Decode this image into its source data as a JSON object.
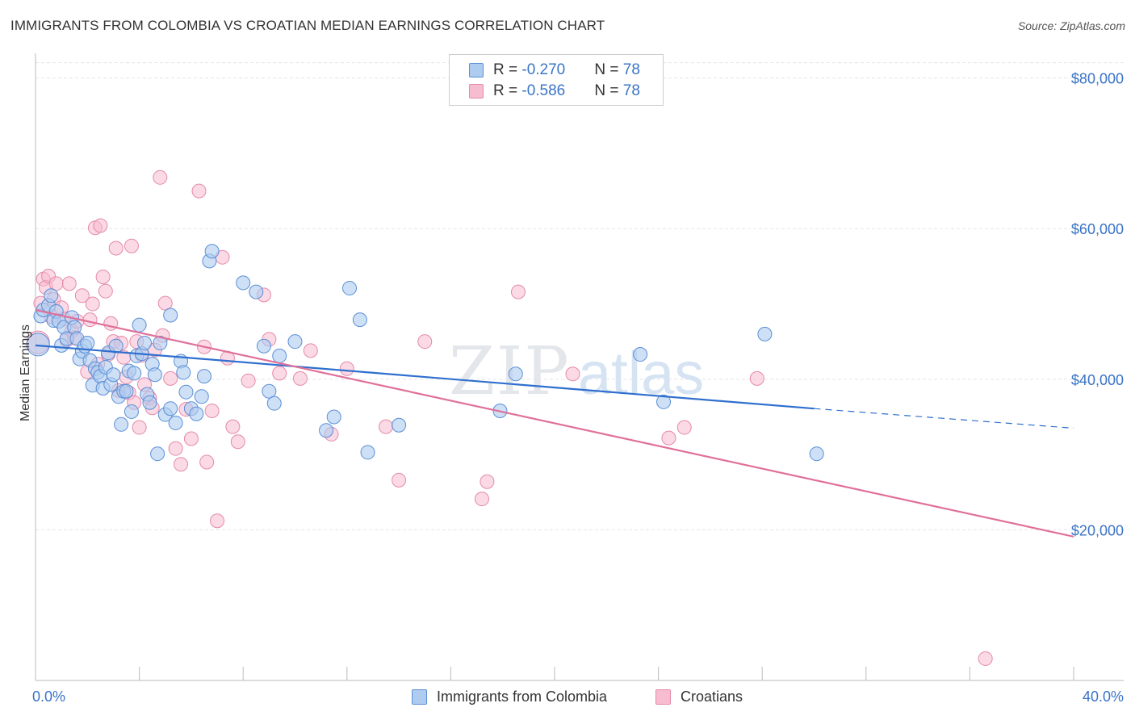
{
  "header": {
    "title": "IMMIGRANTS FROM COLOMBIA VS CROATIAN MEDIAN EARNINGS CORRELATION CHART",
    "source": "Source: ZipAtlas.com"
  },
  "legend": {
    "rows": [
      {
        "r_label": "R = ",
        "r_value": "-0.270",
        "n_label": "N = ",
        "n_value": "78"
      },
      {
        "r_label": "R = ",
        "r_value": "-0.586",
        "n_label": "N = ",
        "n_value": "78"
      }
    ]
  },
  "bottom_legend": [
    "Immigrants from Colombia",
    "Croatians"
  ],
  "colors": {
    "blue_fill": "#aecbf0",
    "blue_stroke": "#5b8fd6",
    "blue_line": "#2f6fce",
    "pink_fill": "#f7bcd0",
    "pink_stroke": "#e48aab",
    "pink_line": "#e0709a",
    "tick_text": "#3a74c7",
    "grid": "#e5e5e5"
  },
  "chart_data": {
    "type": "scatter",
    "title": "IMMIGRANTS FROM COLOMBIA VS CROATIAN MEDIAN EARNINGS CORRELATION CHART",
    "xlabel": "",
    "ylabel": "Median Earnings",
    "xlim": [
      0,
      0.4
    ],
    "ylim": [
      0,
      82000
    ],
    "y_ticks": [
      {
        "value": 20000,
        "label": "$20,000"
      },
      {
        "value": 40000,
        "label": "$40,000"
      },
      {
        "value": 60000,
        "label": "$60,000"
      },
      {
        "value": 80000,
        "label": "$80,000"
      }
    ],
    "x_tick_labels": [
      {
        "value": 0,
        "label": "0.0%"
      },
      {
        "value": 0.4,
        "label": "40.0%"
      }
    ],
    "grid": true,
    "legend_position": "top-center",
    "watermark": "ZIPatlas",
    "series": [
      {
        "name": "Immigrants from Colombia",
        "color": "#aecbf0",
        "trend": {
          "x": [
            0,
            0.3
          ],
          "y": [
            44500,
            36100
          ],
          "dashed_to": [
            0.4,
            33500
          ]
        },
        "points": [
          [
            0.001,
            44600
          ],
          [
            0.002,
            48400
          ],
          [
            0.003,
            49200
          ],
          [
            0.005,
            49800
          ],
          [
            0.006,
            51100
          ],
          [
            0.007,
            47800
          ],
          [
            0.008,
            49000
          ],
          [
            0.009,
            47700
          ],
          [
            0.01,
            44500
          ],
          [
            0.011,
            46900
          ],
          [
            0.012,
            45400
          ],
          [
            0.014,
            48200
          ],
          [
            0.015,
            46900
          ],
          [
            0.016,
            45400
          ],
          [
            0.017,
            42700
          ],
          [
            0.018,
            43700
          ],
          [
            0.019,
            44400
          ],
          [
            0.02,
            44800
          ],
          [
            0.021,
            42500
          ],
          [
            0.022,
            39200
          ],
          [
            0.023,
            41400
          ],
          [
            0.024,
            40900
          ],
          [
            0.025,
            40400
          ],
          [
            0.026,
            38800
          ],
          [
            0.027,
            41600
          ],
          [
            0.028,
            43500
          ],
          [
            0.029,
            39300
          ],
          [
            0.03,
            40600
          ],
          [
            0.031,
            44400
          ],
          [
            0.032,
            37700
          ],
          [
            0.033,
            34000
          ],
          [
            0.034,
            38400
          ],
          [
            0.035,
            38400
          ],
          [
            0.036,
            41100
          ],
          [
            0.037,
            35700
          ],
          [
            0.038,
            40800
          ],
          [
            0.039,
            43100
          ],
          [
            0.04,
            47200
          ],
          [
            0.041,
            43400
          ],
          [
            0.042,
            44800
          ],
          [
            0.043,
            38000
          ],
          [
            0.044,
            36900
          ],
          [
            0.045,
            42000
          ],
          [
            0.046,
            40600
          ],
          [
            0.047,
            30100
          ],
          [
            0.048,
            44800
          ],
          [
            0.05,
            35300
          ],
          [
            0.052,
            36100
          ],
          [
            0.054,
            34200
          ],
          [
            0.056,
            42400
          ],
          [
            0.057,
            40900
          ],
          [
            0.058,
            38300
          ],
          [
            0.06,
            36100
          ],
          [
            0.062,
            35400
          ],
          [
            0.064,
            37700
          ],
          [
            0.065,
            40400
          ],
          [
            0.067,
            55700
          ],
          [
            0.068,
            57000
          ],
          [
            0.08,
            52800
          ],
          [
            0.085,
            51600
          ],
          [
            0.088,
            44400
          ],
          [
            0.09,
            38400
          ],
          [
            0.092,
            36800
          ],
          [
            0.094,
            43100
          ],
          [
            0.1,
            45000
          ],
          [
            0.112,
            33200
          ],
          [
            0.115,
            35000
          ],
          [
            0.121,
            52100
          ],
          [
            0.125,
            47900
          ],
          [
            0.128,
            30300
          ],
          [
            0.14,
            33900
          ],
          [
            0.179,
            35800
          ],
          [
            0.185,
            40700
          ],
          [
            0.233,
            43300
          ],
          [
            0.242,
            37000
          ],
          [
            0.281,
            46000
          ],
          [
            0.301,
            30100
          ],
          [
            0.052,
            48500
          ]
        ]
      },
      {
        "name": "Croatians",
        "color": "#f7bcd0",
        "trend": {
          "x": [
            0,
            0.4
          ],
          "y": [
            49200,
            19100
          ]
        },
        "points": [
          [
            0.001,
            44900
          ],
          [
            0.002,
            50100
          ],
          [
            0.003,
            53300
          ],
          [
            0.004,
            52200
          ],
          [
            0.005,
            53700
          ],
          [
            0.006,
            48300
          ],
          [
            0.007,
            50600
          ],
          [
            0.008,
            52700
          ],
          [
            0.01,
            49500
          ],
          [
            0.011,
            48000
          ],
          [
            0.012,
            45200
          ],
          [
            0.013,
            52700
          ],
          [
            0.014,
            46400
          ],
          [
            0.015,
            45500
          ],
          [
            0.016,
            47700
          ],
          [
            0.018,
            51100
          ],
          [
            0.02,
            41000
          ],
          [
            0.021,
            47900
          ],
          [
            0.022,
            50000
          ],
          [
            0.023,
            60100
          ],
          [
            0.024,
            42000
          ],
          [
            0.025,
            60400
          ],
          [
            0.026,
            53600
          ],
          [
            0.027,
            51700
          ],
          [
            0.028,
            43300
          ],
          [
            0.029,
            47400
          ],
          [
            0.03,
            45000
          ],
          [
            0.031,
            57400
          ],
          [
            0.032,
            38500
          ],
          [
            0.033,
            44800
          ],
          [
            0.034,
            42900
          ],
          [
            0.035,
            40300
          ],
          [
            0.036,
            38200
          ],
          [
            0.037,
            57700
          ],
          [
            0.038,
            36900
          ],
          [
            0.039,
            45000
          ],
          [
            0.04,
            33600
          ],
          [
            0.041,
            43200
          ],
          [
            0.042,
            39300
          ],
          [
            0.044,
            37500
          ],
          [
            0.045,
            36200
          ],
          [
            0.046,
            43900
          ],
          [
            0.048,
            66800
          ],
          [
            0.049,
            45800
          ],
          [
            0.05,
            50100
          ],
          [
            0.052,
            40100
          ],
          [
            0.054,
            30800
          ],
          [
            0.056,
            28700
          ],
          [
            0.058,
            36000
          ],
          [
            0.06,
            32100
          ],
          [
            0.063,
            65000
          ],
          [
            0.065,
            44300
          ],
          [
            0.066,
            29000
          ],
          [
            0.068,
            35800
          ],
          [
            0.07,
            21200
          ],
          [
            0.072,
            56200
          ],
          [
            0.074,
            42800
          ],
          [
            0.076,
            33700
          ],
          [
            0.078,
            31700
          ],
          [
            0.082,
            39800
          ],
          [
            0.088,
            51200
          ],
          [
            0.09,
            45300
          ],
          [
            0.094,
            40800
          ],
          [
            0.102,
            40100
          ],
          [
            0.106,
            43800
          ],
          [
            0.114,
            32700
          ],
          [
            0.12,
            41400
          ],
          [
            0.135,
            33700
          ],
          [
            0.14,
            26600
          ],
          [
            0.15,
            45000
          ],
          [
            0.172,
            24100
          ],
          [
            0.174,
            26400
          ],
          [
            0.186,
            51600
          ],
          [
            0.207,
            40700
          ],
          [
            0.244,
            32200
          ],
          [
            0.25,
            33600
          ],
          [
            0.278,
            40100
          ],
          [
            0.366,
            2900
          ]
        ]
      }
    ]
  }
}
